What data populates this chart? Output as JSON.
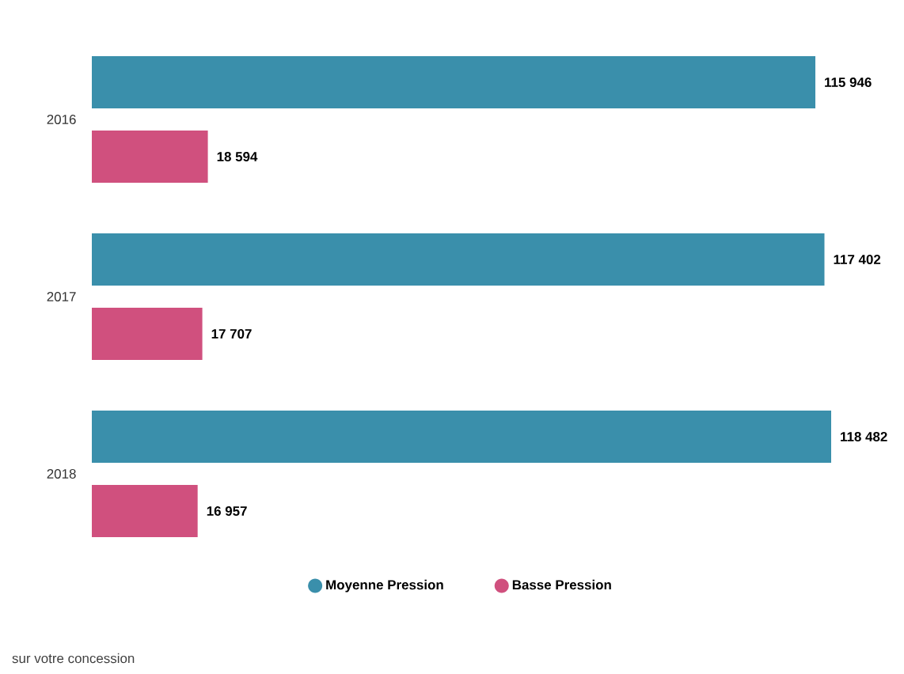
{
  "chart_data": {
    "type": "bar",
    "orientation": "horizontal",
    "categories": [
      "2016",
      "2017",
      "2018"
    ],
    "series": [
      {
        "name": "Moyenne Pression",
        "color": "#3a8fab",
        "values": [
          115946,
          117402,
          118482
        ]
      },
      {
        "name": "Basse Pression",
        "color": "#d0507e",
        "values": [
          18594,
          17707,
          16957
        ]
      }
    ],
    "tick_labels": "y",
    "data_labels": true,
    "legend": "bottom",
    "annotations": [
      "sur votre concession"
    ]
  }
}
